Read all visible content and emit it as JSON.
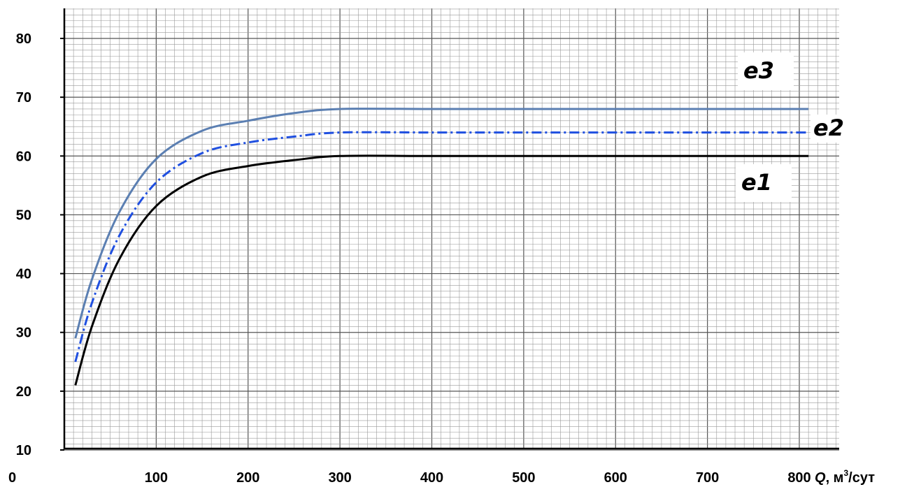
{
  "chart_data": {
    "type": "line",
    "x_ticks": [
      "0",
      "100",
      "200",
      "300",
      "400",
      "500",
      "600",
      "700",
      "800"
    ],
    "y_ticks": [
      "10",
      "20",
      "30",
      "40",
      "50",
      "60",
      "70",
      "80"
    ],
    "xlim": [
      0,
      850
    ],
    "ylim": [
      10,
      85
    ],
    "grid": true,
    "x_unit": {
      "symbol": "Q",
      "text": ", м",
      "sup": "3",
      "tail": "/сут"
    },
    "series": [
      {
        "name": "e1",
        "color": "#000000",
        "style": "solid",
        "x": [
          12,
          30,
          60,
          100,
          150,
          200,
          250,
          300,
          400,
          500,
          600,
          700,
          810
        ],
        "y": [
          21,
          31,
          42.5,
          51.5,
          56.5,
          58.3,
          59.3,
          60,
          60,
          60,
          60,
          60,
          60
        ]
      },
      {
        "name": "e2",
        "color": "#1f4fe0",
        "style": "dashdot",
        "x": [
          12,
          30,
          60,
          100,
          150,
          200,
          250,
          300,
          400,
          500,
          600,
          700,
          810
        ],
        "y": [
          25,
          35,
          46.5,
          55.5,
          60.5,
          62.3,
          63.3,
          64,
          64,
          64,
          64,
          64,
          64
        ]
      },
      {
        "name": "e3",
        "color": "#5b7fb2",
        "style": "solid",
        "x": [
          12,
          30,
          60,
          100,
          150,
          200,
          250,
          300,
          400,
          500,
          600,
          700,
          810
        ],
        "y": [
          29,
          39,
          50.5,
          59.5,
          64.3,
          66,
          67.3,
          68,
          68,
          68,
          68,
          68,
          68
        ]
      }
    ]
  }
}
